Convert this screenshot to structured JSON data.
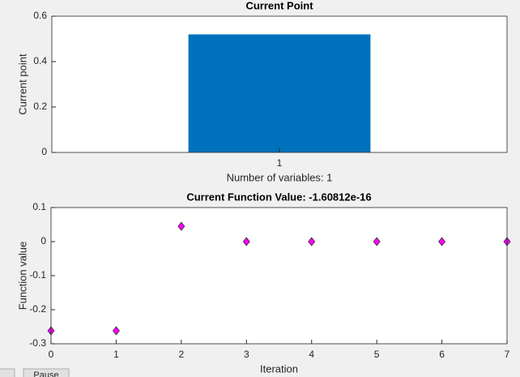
{
  "chart_data": [
    {
      "type": "bar",
      "title": "Current Point",
      "categories": [
        "1"
      ],
      "values": [
        0.52
      ],
      "color": "#0072bd",
      "ylim": [
        0,
        0.6
      ],
      "yticks": [
        0,
        0.2,
        0.4,
        0.6
      ],
      "y_label": "Current point",
      "x_label": "Number of variables: 1"
    },
    {
      "type": "scatter",
      "title": "Current Function Value: -1.60812e-16",
      "x": [
        0,
        1,
        2,
        3,
        4,
        5,
        6,
        7
      ],
      "values": [
        -0.262,
        -0.262,
        0.045,
        0,
        0,
        0,
        0,
        0
      ],
      "color": "#ff00ff",
      "xlim": [
        0,
        7
      ],
      "xticks": [
        0,
        1,
        2,
        3,
        4,
        5,
        6,
        7
      ],
      "ylim": [
        -0.3,
        0.1
      ],
      "yticks": [
        -0.3,
        -0.2,
        -0.1,
        0,
        0.1
      ],
      "y_label": "Function value",
      "x_label": "Iteration"
    }
  ],
  "buttons": [
    "Pause"
  ]
}
